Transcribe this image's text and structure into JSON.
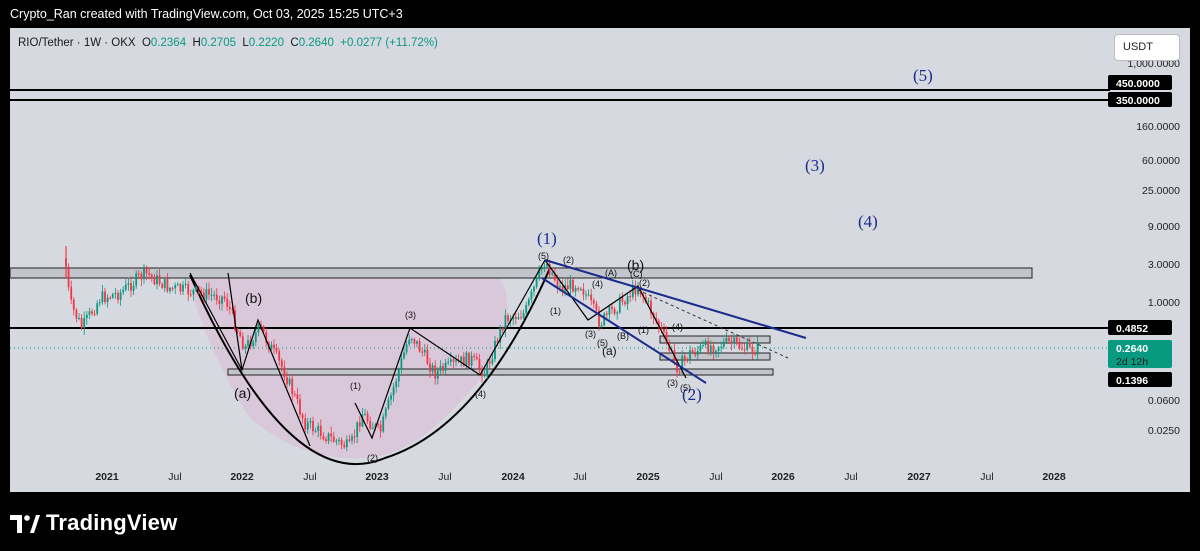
{
  "header": {
    "credit": "Crypto_Ran created with TradingView.com, Oct 03, 2025 15:25 UTC+3"
  },
  "legend": {
    "symbol": "RIO/Tether · 1W · OKX",
    "open_label": "O",
    "open": "0.2364",
    "high_label": "H",
    "high": "0.2705",
    "low_label": "L",
    "low": "0.2220",
    "close_label": "C",
    "close": "0.2640",
    "change": "+0.0277 (+11.72%)"
  },
  "currency_button": "USDT",
  "footer": {
    "brand": "TradingView"
  },
  "colors": {
    "background": "#d6d9e0",
    "up": "#089981",
    "down": "#f23645",
    "wave": "#1a2b8c",
    "cup_fill": "#d9c2d7"
  },
  "chart_data": {
    "type": "candlestick",
    "symbol": "RIO/Tether",
    "interval": "1W",
    "exchange": "OKX",
    "y_scale": "log",
    "x_tick_labels": [
      "2021",
      "Jul",
      "2022",
      "Jul",
      "2023",
      "Jul",
      "2024",
      "Jul",
      "2025",
      "Jul",
      "2026",
      "Jul",
      "2027",
      "Jul",
      "2028"
    ],
    "y_tick_labels": [
      "1,000.0000",
      "160.0000",
      "60.0000",
      "25.0000",
      "9.0000",
      "3.0000",
      "1.0000",
      "0.0600",
      "0.0250"
    ],
    "price_labels": [
      {
        "text": "450.0000",
        "value": 450,
        "style": "black"
      },
      {
        "text": "350.0000",
        "value": 350,
        "style": "black"
      },
      {
        "text": "0.4852",
        "value": 0.4852,
        "style": "black"
      },
      {
        "text": "0.2640",
        "sub": "2d 12h",
        "value": 0.264,
        "style": "green"
      },
      {
        "text": "0.1396",
        "value": 0.1396,
        "style": "black"
      }
    ],
    "horizontal_levels": [
      450,
      350,
      0.4852,
      0.1396
    ],
    "zones": [
      {
        "from": 2.2,
        "to": 2.8
      },
      {
        "from": 0.16,
        "to": 0.175
      }
    ],
    "elliott_labels": [
      "(1)",
      "(2)",
      "(3)",
      "(4)",
      "(5)",
      "(a)",
      "(b)"
    ],
    "small_wave_labels": [
      "(1)",
      "(2)",
      "(3)",
      "(4)",
      "(5)",
      "(A)",
      "(B)",
      "(C)"
    ],
    "last_close": 0.264,
    "countdown": "2d 12h"
  }
}
